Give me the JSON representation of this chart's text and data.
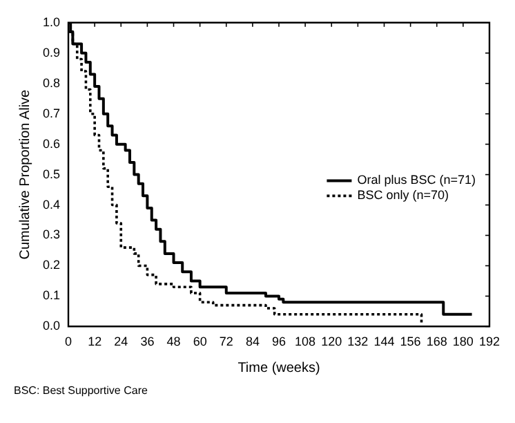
{
  "chart_data": {
    "type": "step",
    "xlabel": "Time (weeks)",
    "ylabel": "Cumulative Proportion Alive",
    "annotations": [
      "BSC: Best Supportive Care"
    ],
    "xlim": [
      0,
      192
    ],
    "xticks": [
      0,
      12,
      24,
      36,
      48,
      60,
      72,
      84,
      96,
      108,
      120,
      132,
      144,
      156,
      168,
      180,
      192
    ],
    "ylim": [
      0,
      1
    ],
    "yticks": [
      {
        "value": 0,
        "label": "0.0"
      },
      0.1,
      0.2,
      0.3,
      0.4,
      0.5,
      0.6,
      0.7,
      0.8,
      0.9,
      {
        "value": 1,
        "label": "1.0"
      }
    ],
    "grid": false,
    "legend": "right",
    "marker": "none",
    "series": [
      {
        "name": "Oral plus BSC (n=71)",
        "color": "#000000",
        "line_style": "solid",
        "x": [
          0,
          1,
          2,
          6,
          8,
          10,
          12,
          14,
          16,
          18,
          20,
          22,
          26,
          28,
          30,
          32,
          34,
          36,
          38,
          40,
          42,
          44,
          48,
          52,
          56,
          60,
          72,
          90,
          96,
          98,
          171,
          184
        ],
        "values": [
          1.0,
          0.97,
          0.93,
          0.9,
          0.87,
          0.83,
          0.79,
          0.75,
          0.7,
          0.66,
          0.63,
          0.6,
          0.58,
          0.54,
          0.5,
          0.47,
          0.43,
          0.39,
          0.35,
          0.32,
          0.28,
          0.24,
          0.21,
          0.18,
          0.15,
          0.13,
          0.11,
          0.1,
          0.09,
          0.08,
          0.04,
          0.04
        ]
      },
      {
        "name": "BSC only (n=70)",
        "color": "#000000",
        "line_style": "dotted",
        "x": [
          0,
          2,
          4,
          6,
          8,
          10,
          12,
          14,
          16,
          18,
          20,
          22,
          24,
          30,
          32,
          36,
          40,
          48,
          56,
          60,
          66,
          90,
          94,
          160,
          161
        ],
        "values": [
          0.97,
          0.93,
          0.88,
          0.84,
          0.78,
          0.7,
          0.63,
          0.58,
          0.52,
          0.46,
          0.4,
          0.34,
          0.26,
          0.24,
          0.2,
          0.17,
          0.14,
          0.13,
          0.11,
          0.08,
          0.07,
          0.06,
          0.04,
          0.04,
          0.01
        ]
      }
    ]
  }
}
